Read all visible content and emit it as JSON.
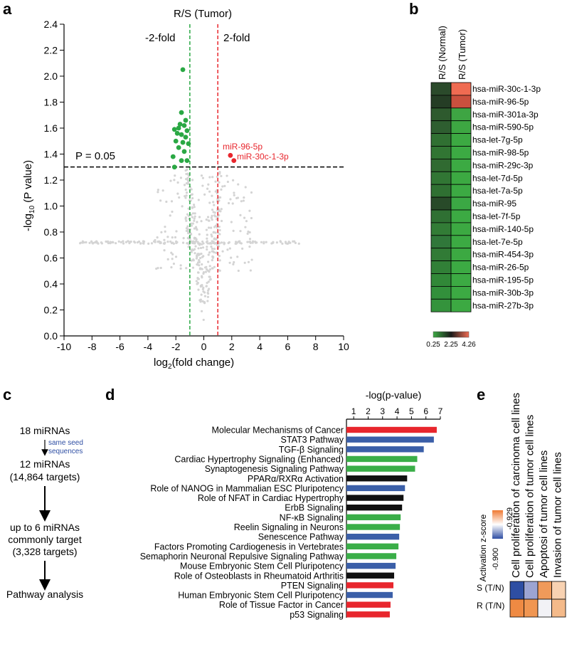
{
  "panels": {
    "a": {
      "label": "a",
      "title": "R/S (Tumor)",
      "ylabel_main": "-log",
      "ylabel_sub": "10",
      "ylabel_rest": " (P value)",
      "xlabel_main": "log",
      "xlabel_sub": "2",
      "xlabel_rest": "(fold change)",
      "fold_left": "-2-fold",
      "fold_right": "2-fold",
      "p_label": "P = 0.05",
      "annot_1": "miR-96-5p",
      "annot_2": "miR-30c-1-3p"
    },
    "b": {
      "label": "b",
      "col_headers": [
        "R/S (Normal)",
        "R/S (Tumor)"
      ],
      "colorbar_labels": [
        "0.25",
        "2.25",
        "4.26"
      ]
    },
    "c": {
      "label": "c",
      "step1": "18 miRNAs",
      "step1_note": [
        "same seed",
        "sequences"
      ],
      "step2": [
        "12 miRNAs",
        "(14,864 targets)"
      ],
      "step3": [
        "up to 6 miRNAs",
        "commonly target",
        "(3,328 targets)"
      ],
      "step4": "Pathway analysis"
    },
    "d": {
      "label": "d",
      "axis_title": "-log(p-value)"
    },
    "e": {
      "label": "e",
      "legend_title": "Activation z-score",
      "legend_min": "-0.900",
      "legend_max": "-0.929",
      "col_headers": [
        "Cell proliferation of carcinoma cell lines",
        "Cell proliferation of tumor cell lines",
        "Apoptosi of tumor cell lines",
        "Invasion of tumor cell lines"
      ],
      "rows": [
        "S (T/N)",
        "R (T/N)"
      ]
    }
  },
  "chart_data": [
    {
      "type": "scatter",
      "panel": "a",
      "title": "R/S (Tumor)",
      "xlabel": "log2(fold change)",
      "ylabel": "-log10 (P value)",
      "xlim": [
        -10,
        10
      ],
      "ylim": [
        0,
        2.4
      ],
      "xticks": [
        -10,
        -8,
        -6,
        -4,
        -2,
        0,
        2,
        4,
        6,
        8,
        10
      ],
      "yticks": [
        0.0,
        0.2,
        0.4,
        0.6,
        0.8,
        1.0,
        1.2,
        1.4,
        1.6,
        1.8,
        2.0,
        2.2,
        2.4
      ],
      "ytick_labels": [
        "0.0",
        "0.2",
        "0.4",
        "0.6",
        "0.8",
        "1.0",
        "1.2",
        "1.4",
        "1.6",
        "1.8",
        "2.0",
        "2.2",
        "2.4"
      ],
      "threshold_lines": {
        "x": [
          -1,
          1
        ],
        "y": 1.301
      },
      "significant_down": [
        {
          "x": -1.5,
          "y": 2.05
        },
        {
          "x": -1.6,
          "y": 1.72
        },
        {
          "x": -1.3,
          "y": 1.66
        },
        {
          "x": -1.7,
          "y": 1.63
        },
        {
          "x": -1.8,
          "y": 1.6
        },
        {
          "x": -1.4,
          "y": 1.62
        },
        {
          "x": -2.1,
          "y": 1.59
        },
        {
          "x": -1.2,
          "y": 1.58
        },
        {
          "x": -1.9,
          "y": 1.56
        },
        {
          "x": -1.6,
          "y": 1.55
        },
        {
          "x": -1.3,
          "y": 1.53
        },
        {
          "x": -2.0,
          "y": 1.5
        },
        {
          "x": -1.5,
          "y": 1.49
        },
        {
          "x": -1.1,
          "y": 1.48
        },
        {
          "x": -1.8,
          "y": 1.45
        },
        {
          "x": -1.4,
          "y": 1.42
        },
        {
          "x": -2.2,
          "y": 1.38
        },
        {
          "x": -1.6,
          "y": 1.35
        },
        {
          "x": -1.2,
          "y": 1.35
        },
        {
          "x": -2.1,
          "y": 1.3
        }
      ],
      "significant_up": [
        {
          "x": 1.9,
          "y": 1.39,
          "label": "miR-96-5p"
        },
        {
          "x": 2.15,
          "y": 1.35,
          "label": "miR-30c-1-3p"
        }
      ]
    },
    {
      "type": "heatmap",
      "panel": "b",
      "columns": [
        "R/S (Normal)",
        "R/S (Tumor)"
      ],
      "rows": [
        "hsa-miR-30c-1-3p",
        "hsa-miR-96-5p",
        "hsa-miR-301a-3p",
        "hsa-miR-590-5p",
        "hsa-let-7g-5p",
        "hsa-miR-98-5p",
        "hsa-miR-29c-3p",
        "hsa-let-7d-5p",
        "hsa-let-7a-5p",
        "hsa-miR-95",
        "hsa-let-7f-5p",
        "hsa-miR-140-5p",
        "hsa-let-7e-5p",
        "hsa-miR-454-3p",
        "hsa-miR-26-5p",
        "hsa-miR-195-5p",
        "hsa-miR-30b-3p",
        "hsa-miR-27b-3p"
      ],
      "colors": [
        [
          "#2b4a2b",
          "#ef6b52"
        ],
        [
          "#253d25",
          "#c9503e"
        ],
        [
          "#2e5a2e",
          "#3ea543"
        ],
        [
          "#2e5e30",
          "#3da742"
        ],
        [
          "#307032",
          "#3ca942"
        ],
        [
          "#317533",
          "#3caa43"
        ],
        [
          "#306a31",
          "#3caa43"
        ],
        [
          "#317634",
          "#3ca942"
        ],
        [
          "#2f7032",
          "#3caa43"
        ],
        [
          "#284a29",
          "#3ba844"
        ],
        [
          "#2f7033",
          "#3caa43"
        ],
        [
          "#327c36",
          "#3ca942"
        ],
        [
          "#30773a",
          "#3caa43"
        ],
        [
          "#317b36",
          "#3ca942"
        ],
        [
          "#318037",
          "#3caa43"
        ],
        [
          "#318838",
          "#3caa43"
        ],
        [
          "#32903b",
          "#3caa43"
        ],
        [
          "#34933c",
          "#3ca942"
        ]
      ],
      "colorbar": {
        "min": 0.25,
        "mid": 2.25,
        "max": 4.26,
        "colors": [
          "#3caa43",
          "#1a1a1a",
          "#ef6b52"
        ]
      }
    },
    {
      "type": "bar",
      "orientation": "horizontal",
      "panel": "d",
      "xlabel": "-log(p-value)",
      "xlim": [
        0.5,
        7
      ],
      "xticks": [
        1,
        2,
        3,
        4,
        5,
        6,
        7
      ],
      "categories": [
        "Molecular Mechanisms of Cancer",
        "STAT3 Pathway",
        "TGF-β Signaling",
        "Cardiac Hypertrophy Signaling (Enhanced)",
        "Synaptogenesis Signaling Pathway",
        "PPARα/RXRα Activation",
        "Role of NANOG in Mammalian ESC Pluripotency",
        "Role of NFAT in Cardiac Hypertrophy",
        "ErbB Signaling",
        "NF-κB Signaling",
        "Reelin Signaling in Neurons",
        "Senescence Pathway",
        "Factors Promoting Cardiogenesis in Vertebrates",
        "Semaphorin Neuronal Repulsive Signaling Pathway",
        "Mouse Embryonic Stem Cell Pluripotency",
        "Role of Osteoblasts in Rheumatoid Arthritis",
        "PTEN Signaling",
        "Human Embryonic Stem Cell Pluripotency",
        "Role of Tissue Factor in Cancer",
        "p53 Signaling"
      ],
      "values": [
        6.75,
        6.55,
        5.85,
        5.4,
        5.25,
        4.7,
        4.55,
        4.45,
        4.35,
        4.25,
        4.2,
        4.15,
        4.1,
        3.95,
        3.9,
        3.8,
        3.75,
        3.7,
        3.55,
        3.5
      ],
      "bar_colors": [
        "#e8262d",
        "#3b5fa8",
        "#3b5fa8",
        "#3aae48",
        "#3aae48",
        "#111111",
        "#3b5fa8",
        "#111111",
        "#111111",
        "#3aae48",
        "#3aae48",
        "#3b5fa8",
        "#3aae48",
        "#3aae48",
        "#3b5fa8",
        "#111111",
        "#e8262d",
        "#3b5fa8",
        "#e8262d",
        "#e8262d"
      ]
    },
    {
      "type": "heatmap",
      "panel": "e",
      "columns": [
        "Cell proliferation of carcinoma cell lines",
        "Cell proliferation of tumor cell lines",
        "Apoptosi of tumor cell lines",
        "Invasion of tumor cell lines"
      ],
      "rows": [
        "S (T/N)",
        "R (T/N)"
      ],
      "colors": [
        [
          "#2e4ea3",
          "#9ca4d2",
          "#f09a5a",
          "#f8d2b2"
        ],
        [
          "#ef8a43",
          "#f09652",
          "#f2f2f6",
          "#f4ba8a"
        ]
      ],
      "colorbar": {
        "min": "-0.900",
        "max": "-0.929",
        "colors": [
          "#2e4ea3",
          "#ffffff",
          "#ef7a33"
        ]
      }
    }
  ]
}
